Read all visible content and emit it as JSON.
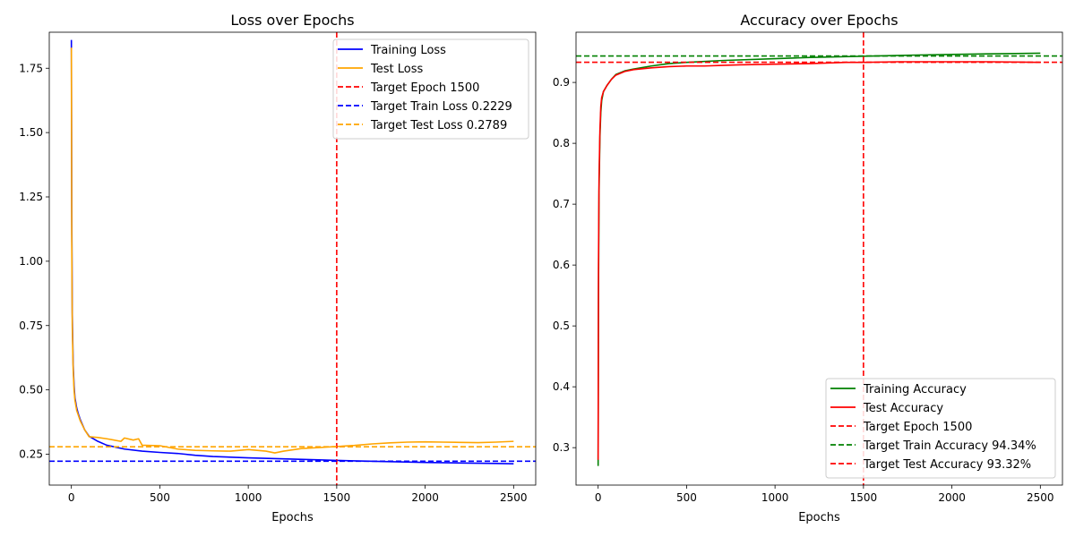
{
  "chart_data": [
    {
      "type": "line",
      "title": "Loss over Epochs",
      "xlabel": "Epochs",
      "ylabel": "",
      "xlim": [
        -125,
        2625
      ],
      "ylim": [
        0.13,
        1.89
      ],
      "xticks": [
        0,
        500,
        1000,
        1500,
        2000,
        2500
      ],
      "xtick_labels": [
        "0",
        "500",
        "1000",
        "1500",
        "2000",
        "2500"
      ],
      "yticks": [
        0.25,
        0.5,
        0.75,
        1.0,
        1.25,
        1.5,
        1.75
      ],
      "ytick_labels": [
        "0.25",
        "0.50",
        "0.75",
        "1.00",
        "1.25",
        "1.50",
        "1.75"
      ],
      "grid": false,
      "legend_position": "top-right",
      "series": [
        {
          "name": "Training Loss",
          "color": "#0000ff",
          "x": [
            0,
            2,
            5,
            10,
            15,
            20,
            30,
            40,
            50,
            75,
            100,
            150,
            200,
            300,
            400,
            500,
            600,
            700,
            800,
            1000,
            1200,
            1400,
            1500,
            1600,
            1800,
            2000,
            2200,
            2400,
            2500
          ],
          "y": [
            1.86,
            1.2,
            0.8,
            0.6,
            0.52,
            0.47,
            0.43,
            0.405,
            0.385,
            0.345,
            0.32,
            0.3,
            0.285,
            0.27,
            0.262,
            0.257,
            0.253,
            0.246,
            0.241,
            0.236,
            0.232,
            0.228,
            0.226,
            0.224,
            0.221,
            0.218,
            0.216,
            0.214,
            0.213
          ]
        },
        {
          "name": "Test Loss",
          "color": "#ffa500",
          "x": [
            0,
            2,
            5,
            10,
            15,
            20,
            30,
            40,
            50,
            75,
            100,
            150,
            200,
            280,
            300,
            350,
            380,
            400,
            500,
            600,
            700,
            800,
            900,
            1000,
            1100,
            1150,
            1200,
            1300,
            1400,
            1500,
            1600,
            1700,
            1800,
            1900,
            2000,
            2100,
            2200,
            2300,
            2400,
            2500
          ],
          "y": [
            1.83,
            1.1,
            0.75,
            0.58,
            0.5,
            0.46,
            0.42,
            0.4,
            0.38,
            0.345,
            0.318,
            0.315,
            0.31,
            0.3,
            0.313,
            0.305,
            0.31,
            0.285,
            0.283,
            0.27,
            0.265,
            0.263,
            0.262,
            0.268,
            0.262,
            0.255,
            0.262,
            0.272,
            0.276,
            0.28,
            0.284,
            0.29,
            0.294,
            0.297,
            0.298,
            0.297,
            0.296,
            0.295,
            0.297,
            0.3
          ]
        }
      ],
      "reference_lines": [
        {
          "name": "Target Epoch 1500",
          "orientation": "vertical",
          "value": 1500,
          "color": "#ff0000"
        },
        {
          "name": "Target Train Loss 0.2229",
          "orientation": "horizontal",
          "value": 0.2229,
          "color": "#0000ff"
        },
        {
          "name": "Target Test Loss 0.2789",
          "orientation": "horizontal",
          "value": 0.2789,
          "color": "#ffa500"
        }
      ]
    },
    {
      "type": "line",
      "title": "Accuracy over Epochs",
      "xlabel": "Epochs",
      "ylabel": "",
      "xlim": [
        -125,
        2625
      ],
      "ylim": [
        0.2385,
        0.9825
      ],
      "xticks": [
        0,
        500,
        1000,
        1500,
        2000,
        2500
      ],
      "xtick_labels": [
        "0",
        "500",
        "1000",
        "1500",
        "2000",
        "2500"
      ],
      "yticks": [
        0.3,
        0.4,
        0.5,
        0.6,
        0.7,
        0.8,
        0.9
      ],
      "ytick_labels": [
        "0.3",
        "0.4",
        "0.5",
        "0.6",
        "0.7",
        "0.8",
        "0.9"
      ],
      "grid": false,
      "legend_position": "lower-right",
      "series": [
        {
          "name": "Training Accuracy",
          "color": "#008000",
          "x": [
            0,
            2,
            5,
            10,
            15,
            20,
            30,
            50,
            75,
            100,
            150,
            200,
            300,
            400,
            500,
            700,
            1000,
            1200,
            1500,
            1800,
            2000,
            2200,
            2500
          ],
          "y": [
            0.27,
            0.55,
            0.72,
            0.81,
            0.85,
            0.87,
            0.885,
            0.895,
            0.905,
            0.913,
            0.919,
            0.922,
            0.927,
            0.931,
            0.933,
            0.936,
            0.939,
            0.941,
            0.943,
            0.945,
            0.946,
            0.947,
            0.948
          ]
        },
        {
          "name": "Test Accuracy",
          "color": "#ff0000",
          "x": [
            0,
            2,
            5,
            10,
            15,
            20,
            30,
            50,
            75,
            100,
            150,
            200,
            300,
            400,
            500,
            600,
            700,
            800,
            1000,
            1200,
            1400,
            1500,
            1700,
            2000,
            2200,
            2500
          ],
          "y": [
            0.28,
            0.6,
            0.74,
            0.82,
            0.86,
            0.875,
            0.885,
            0.895,
            0.905,
            0.912,
            0.918,
            0.921,
            0.924,
            0.926,
            0.927,
            0.927,
            0.928,
            0.929,
            0.93,
            0.931,
            0.933,
            0.933,
            0.934,
            0.934,
            0.934,
            0.933
          ]
        }
      ],
      "reference_lines": [
        {
          "name": "Target Epoch 1500",
          "orientation": "vertical",
          "value": 1500,
          "color": "#ff0000"
        },
        {
          "name": "Target Train Accuracy 94.34%",
          "orientation": "horizontal",
          "value": 0.9434,
          "color": "#008000"
        },
        {
          "name": "Target Test Accuracy 93.32%",
          "orientation": "horizontal",
          "value": 0.9332,
          "color": "#ff0000"
        }
      ]
    }
  ]
}
